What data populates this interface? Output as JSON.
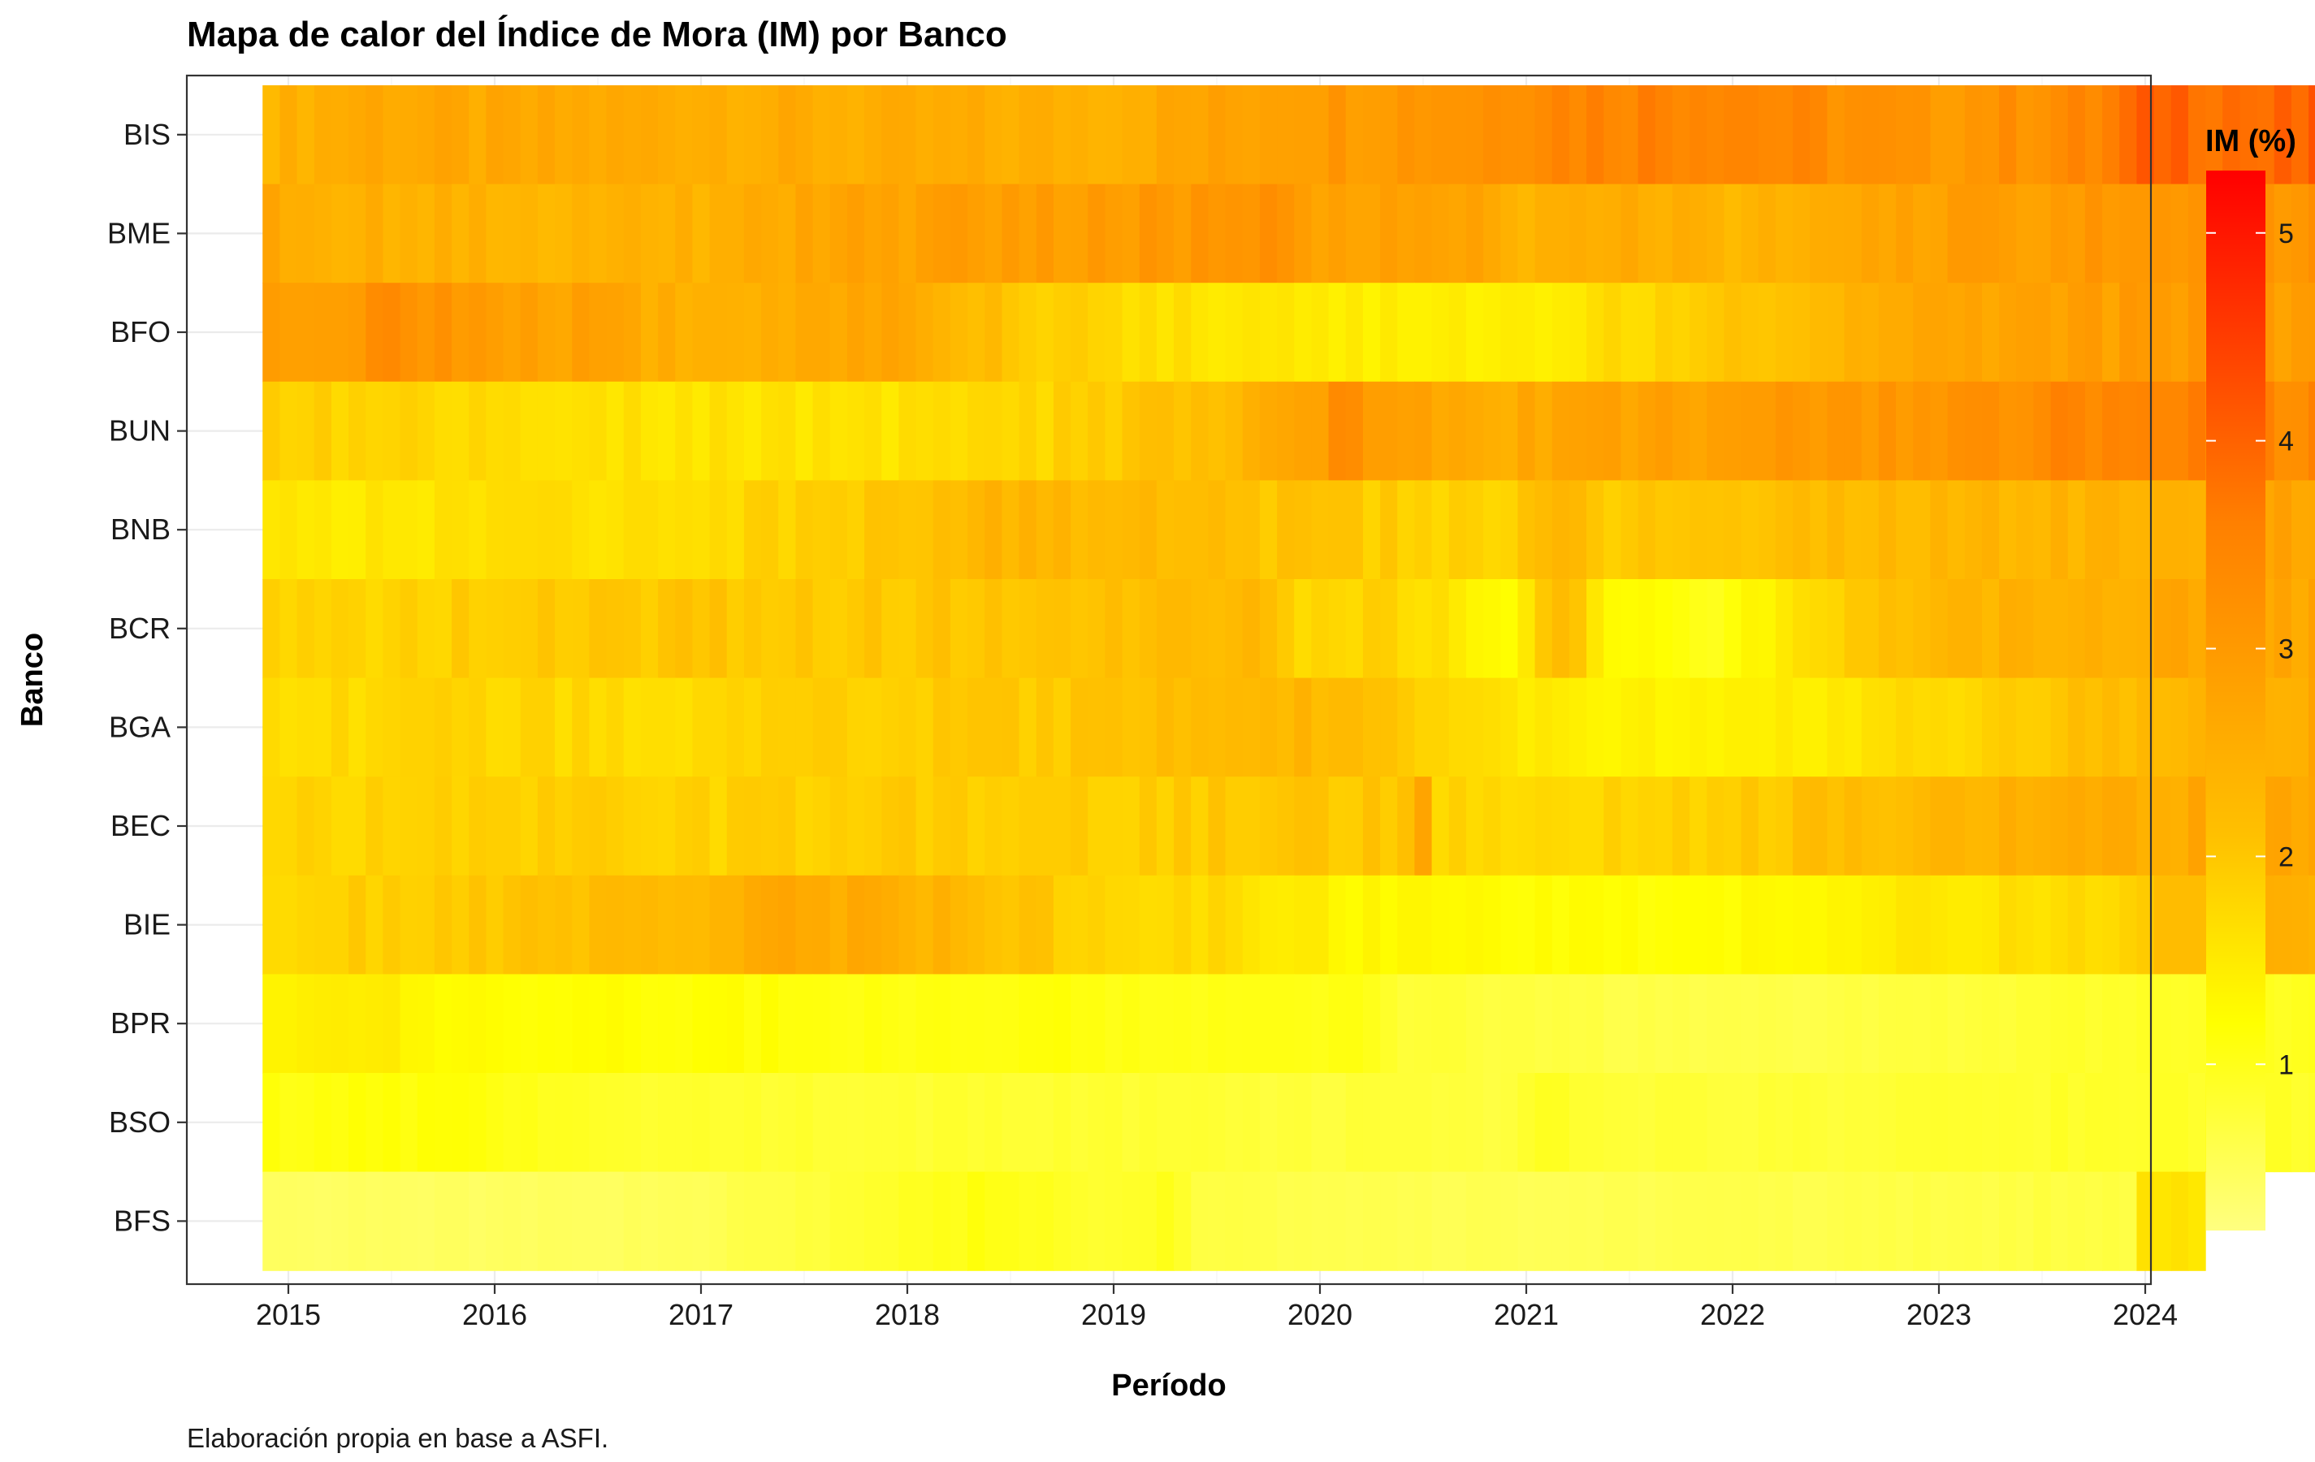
{
  "chart_data": {
    "type": "heatmap",
    "title": "Mapa de calor del Índice de Mora (IM) por Banco",
    "xlabel": "Período",
    "ylabel": "Banco",
    "caption": "Elaboración propia en base a ASFI.",
    "legend": {
      "title": "IM (%)",
      "position": "right",
      "ticks": [
        1,
        2,
        3,
        4,
        5
      ],
      "range": [
        0.2,
        5.3
      ]
    },
    "colors": {
      "low": "#FFFF80",
      "mid1": "#FFFF00",
      "mid2": "#FFC000",
      "mid3": "#FF8000",
      "high": "#FF0000"
    },
    "x_ticks": [
      "2015",
      "2016",
      "2017",
      "2018",
      "2019",
      "2020",
      "2021",
      "2022",
      "2023",
      "2024"
    ],
    "x_range": [
      "2014-12",
      "2024-01"
    ],
    "grid": true,
    "categories": [
      "BIS",
      "BME",
      "BFO",
      "BUN",
      "BNB",
      "BCR",
      "BGA",
      "BEC",
      "BIE",
      "BPR",
      "BSO",
      "BFS"
    ],
    "series": [
      {
        "name": "BIS",
        "start": "2014-12",
        "knots": [
          [
            0,
            2.4
          ],
          [
            6,
            2.7
          ],
          [
            12,
            2.6
          ],
          [
            24,
            2.6
          ],
          [
            36,
            2.5
          ],
          [
            48,
            2.5
          ],
          [
            56,
            2.8
          ],
          [
            60,
            3.0
          ],
          [
            70,
            3.2
          ],
          [
            74,
            3.5
          ],
          [
            84,
            3.6
          ],
          [
            96,
            3.0
          ],
          [
            106,
            3.4
          ],
          [
            110,
            4.1
          ],
          [
            116,
            3.8
          ],
          [
            120,
            4.0
          ],
          [
            125,
            4.0
          ]
        ]
      },
      {
        "name": "BME",
        "start": "2014-12",
        "knots": [
          [
            0,
            2.6
          ],
          [
            12,
            2.4
          ],
          [
            24,
            2.4
          ],
          [
            36,
            2.8
          ],
          [
            48,
            2.9
          ],
          [
            58,
            3.1
          ],
          [
            60,
            2.9
          ],
          [
            70,
            2.8
          ],
          [
            72,
            2.4
          ],
          [
            80,
            2.6
          ],
          [
            84,
            2.3
          ],
          [
            96,
            2.8
          ],
          [
            108,
            3.0
          ],
          [
            125,
            3.1
          ]
        ]
      },
      {
        "name": "BFO",
        "start": "2014-12",
        "knots": [
          [
            0,
            3.0
          ],
          [
            8,
            3.2
          ],
          [
            12,
            3.0
          ],
          [
            24,
            2.5
          ],
          [
            36,
            2.7
          ],
          [
            44,
            2.0
          ],
          [
            48,
            1.8
          ],
          [
            54,
            1.6
          ],
          [
            60,
            1.5
          ],
          [
            66,
            1.4
          ],
          [
            72,
            1.4
          ],
          [
            80,
            1.8
          ],
          [
            84,
            2.0
          ],
          [
            96,
            2.6
          ],
          [
            108,
            2.9
          ],
          [
            124,
            3.0
          ],
          [
            125,
            3.6
          ]
        ]
      },
      {
        "name": "BUN",
        "start": "2014-12",
        "knots": [
          [
            0,
            1.9
          ],
          [
            12,
            1.7
          ],
          [
            24,
            1.6
          ],
          [
            36,
            1.6
          ],
          [
            42,
            1.7
          ],
          [
            48,
            1.9
          ],
          [
            56,
            2.2
          ],
          [
            60,
            2.7
          ],
          [
            62,
            3.2
          ],
          [
            66,
            2.8
          ],
          [
            72,
            2.6
          ],
          [
            84,
            2.9
          ],
          [
            96,
            3.1
          ],
          [
            108,
            3.5
          ],
          [
            125,
            3.3
          ]
        ]
      },
      {
        "name": "BNB",
        "start": "2014-12",
        "knots": [
          [
            0,
            1.5
          ],
          [
            12,
            1.6
          ],
          [
            24,
            1.7
          ],
          [
            36,
            2.0
          ],
          [
            42,
            2.4
          ],
          [
            48,
            2.3
          ],
          [
            60,
            2.0
          ],
          [
            66,
            1.9
          ],
          [
            72,
            1.8
          ],
          [
            75,
            2.5
          ],
          [
            78,
            1.9
          ],
          [
            84,
            2.1
          ],
          [
            96,
            2.3
          ],
          [
            108,
            2.4
          ],
          [
            118,
            2.8
          ],
          [
            122,
            3.1
          ],
          [
            125,
            3.3
          ]
        ]
      },
      {
        "name": "BCR",
        "start": "2014-12",
        "knots": [
          [
            0,
            1.8
          ],
          [
            12,
            1.9
          ],
          [
            24,
            2.0
          ],
          [
            36,
            2.0
          ],
          [
            48,
            2.1
          ],
          [
            58,
            2.3
          ],
          [
            60,
            1.8
          ],
          [
            66,
            1.8
          ],
          [
            72,
            1.2
          ],
          [
            75,
            2.3
          ],
          [
            78,
            1.3
          ],
          [
            84,
            1.0
          ],
          [
            90,
            1.8
          ],
          [
            96,
            2.3
          ],
          [
            108,
            2.6
          ],
          [
            125,
            2.8
          ]
        ]
      },
      {
        "name": "BGA",
        "start": "2014-12",
        "knots": [
          [
            0,
            1.7
          ],
          [
            12,
            1.8
          ],
          [
            24,
            1.7
          ],
          [
            36,
            1.9
          ],
          [
            48,
            2.0
          ],
          [
            58,
            2.3
          ],
          [
            60,
            2.3
          ],
          [
            66,
            2.0
          ],
          [
            72,
            1.5
          ],
          [
            78,
            1.4
          ],
          [
            84,
            1.3
          ],
          [
            96,
            1.7
          ],
          [
            108,
            2.2
          ],
          [
            118,
            2.6
          ],
          [
            125,
            2.9
          ]
        ]
      },
      {
        "name": "BEC",
        "start": "2014-12",
        "knots": [
          [
            0,
            1.8
          ],
          [
            12,
            1.9
          ],
          [
            24,
            1.8
          ],
          [
            36,
            1.9
          ],
          [
            48,
            1.9
          ],
          [
            60,
            2.0
          ],
          [
            66,
            2.0
          ],
          [
            67,
            2.9
          ],
          [
            68,
            1.8
          ],
          [
            72,
            1.7
          ],
          [
            84,
            1.9
          ],
          [
            96,
            2.3
          ],
          [
            108,
            2.6
          ],
          [
            125,
            2.8
          ]
        ]
      },
      {
        "name": "BIE",
        "start": "2014-12",
        "knots": [
          [
            0,
            1.8
          ],
          [
            12,
            2.0
          ],
          [
            24,
            2.3
          ],
          [
            30,
            2.6
          ],
          [
            36,
            2.5
          ],
          [
            42,
            2.2
          ],
          [
            48,
            1.8
          ],
          [
            56,
            1.7
          ],
          [
            60,
            1.5
          ],
          [
            63,
            1.3
          ],
          [
            72,
            1.2
          ],
          [
            84,
            1.2
          ],
          [
            96,
            1.5
          ],
          [
            108,
            1.8
          ],
          [
            110,
            2.3
          ],
          [
            125,
            2.5
          ]
        ]
      },
      {
        "name": "BPR",
        "start": "2014-12",
        "knots": [
          [
            0,
            1.4
          ],
          [
            6,
            1.5
          ],
          [
            12,
            1.2
          ],
          [
            24,
            1.2
          ],
          [
            36,
            1.1
          ],
          [
            48,
            1.1
          ],
          [
            60,
            1.0
          ],
          [
            62,
            1.1
          ],
          [
            66,
            0.8
          ],
          [
            72,
            0.7
          ],
          [
            84,
            0.6
          ],
          [
            96,
            0.7
          ],
          [
            108,
            0.9
          ],
          [
            125,
            1.0
          ]
        ]
      },
      {
        "name": "BSO",
        "start": "2014-12",
        "knots": [
          [
            0,
            1.1
          ],
          [
            12,
            1.1
          ],
          [
            18,
            0.9
          ],
          [
            24,
            0.85
          ],
          [
            36,
            0.8
          ],
          [
            48,
            0.8
          ],
          [
            60,
            0.75
          ],
          [
            72,
            0.7
          ],
          [
            74,
            0.95
          ],
          [
            78,
            0.8
          ],
          [
            84,
            0.75
          ],
          [
            96,
            0.8
          ],
          [
            108,
            0.9
          ],
          [
            125,
            0.9
          ]
        ]
      },
      {
        "name": "BFS",
        "start": "2014-12",
        "knots": [
          [
            0,
            0.45
          ],
          [
            12,
            0.45
          ],
          [
            24,
            0.5
          ],
          [
            36,
            0.9
          ],
          [
            42,
            1.1
          ],
          [
            48,
            0.8
          ],
          [
            52,
            0.95
          ],
          [
            54,
            0.7
          ],
          [
            60,
            0.6
          ],
          [
            72,
            0.55
          ],
          [
            84,
            0.6
          ],
          [
            96,
            0.65
          ],
          [
            108,
            0.7
          ],
          [
            109,
            1.6
          ],
          [
            111,
            1.6
          ],
          [
            112,
            1.6
          ]
        ]
      }
    ]
  }
}
